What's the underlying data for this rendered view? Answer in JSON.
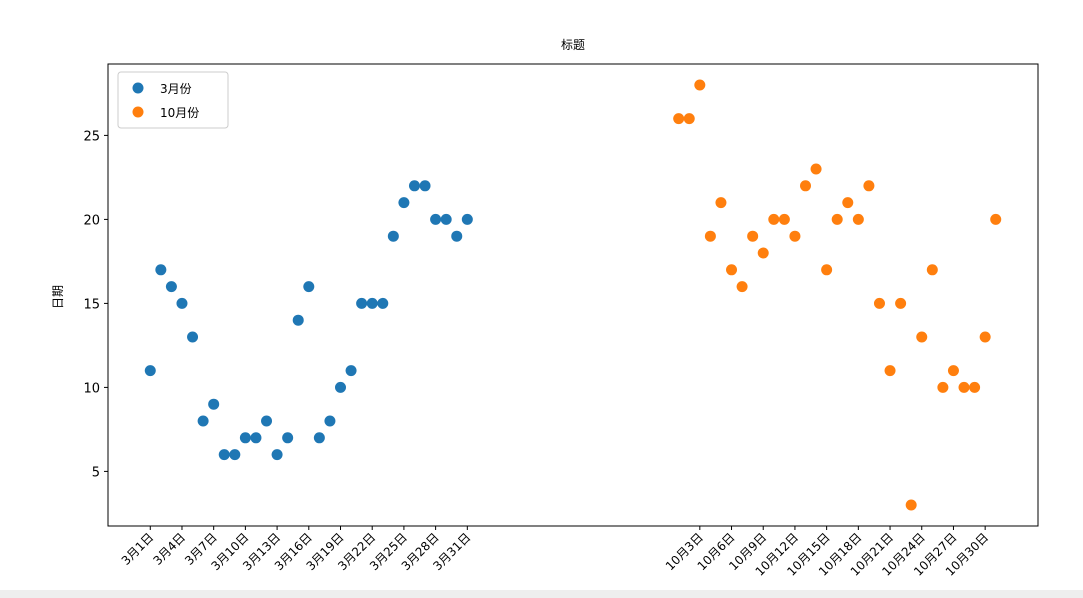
{
  "chart_data": {
    "type": "scatter",
    "title": "标题",
    "y_label": "日期",
    "xlim": [
      -4,
      84
    ],
    "ylim": [
      1.75,
      29.25
    ],
    "xticks": [
      {
        "value": 0,
        "label": "3月1日"
      },
      {
        "value": 3,
        "label": "3月4日"
      },
      {
        "value": 6,
        "label": "3月7日"
      },
      {
        "value": 9,
        "label": "3月10日"
      },
      {
        "value": 12,
        "label": "3月13日"
      },
      {
        "value": 15,
        "label": "3月16日"
      },
      {
        "value": 18,
        "label": "3月19日"
      },
      {
        "value": 21,
        "label": "3月22日"
      },
      {
        "value": 24,
        "label": "3月25日"
      },
      {
        "value": 27,
        "label": "3月28日"
      },
      {
        "value": 30,
        "label": "3月31日"
      },
      {
        "value": 52,
        "label": "10月3日"
      },
      {
        "value": 55,
        "label": "10月6日"
      },
      {
        "value": 58,
        "label": "10月9日"
      },
      {
        "value": 61,
        "label": "10月12日"
      },
      {
        "value": 64,
        "label": "10月15日"
      },
      {
        "value": 67,
        "label": "10月18日"
      },
      {
        "value": 70,
        "label": "10月21日"
      },
      {
        "value": 73,
        "label": "10月24日"
      },
      {
        "value": 76,
        "label": "10月27日"
      },
      {
        "value": 79,
        "label": "10月30日"
      }
    ],
    "yticks": [
      5,
      10,
      15,
      20,
      25
    ],
    "legend": "upper left",
    "series": [
      {
        "name": "3月份",
        "color": "#1f77b4",
        "x": [
          0,
          1,
          2,
          3,
          4,
          5,
          6,
          7,
          8,
          9,
          10,
          11,
          12,
          13,
          14,
          15,
          16,
          17,
          18,
          19,
          20,
          21,
          22,
          23,
          24,
          25,
          26,
          27,
          28,
          29,
          30
        ],
        "values": [
          11,
          17,
          16,
          15,
          13,
          8,
          9,
          6,
          6,
          7,
          7,
          8,
          6,
          7,
          14,
          16,
          7,
          8,
          10,
          11,
          15,
          15,
          15,
          19,
          21,
          22,
          22,
          20,
          20,
          19,
          20
        ]
      },
      {
        "name": "10月份",
        "color": "#ff7f0e",
        "x": [
          50,
          51,
          52,
          53,
          54,
          55,
          56,
          57,
          58,
          59,
          60,
          61,
          62,
          63,
          64,
          65,
          66,
          67,
          68,
          69,
          70,
          71,
          72,
          73,
          74,
          75,
          76,
          77,
          78,
          79,
          80
        ],
        "values": [
          26,
          26,
          28,
          19,
          21,
          17,
          16,
          19,
          18,
          20,
          20,
          19,
          22,
          23,
          17,
          20,
          21,
          20,
          22,
          15,
          11,
          15,
          3,
          13,
          17,
          10,
          11,
          10,
          10,
          13,
          20
        ]
      }
    ]
  }
}
